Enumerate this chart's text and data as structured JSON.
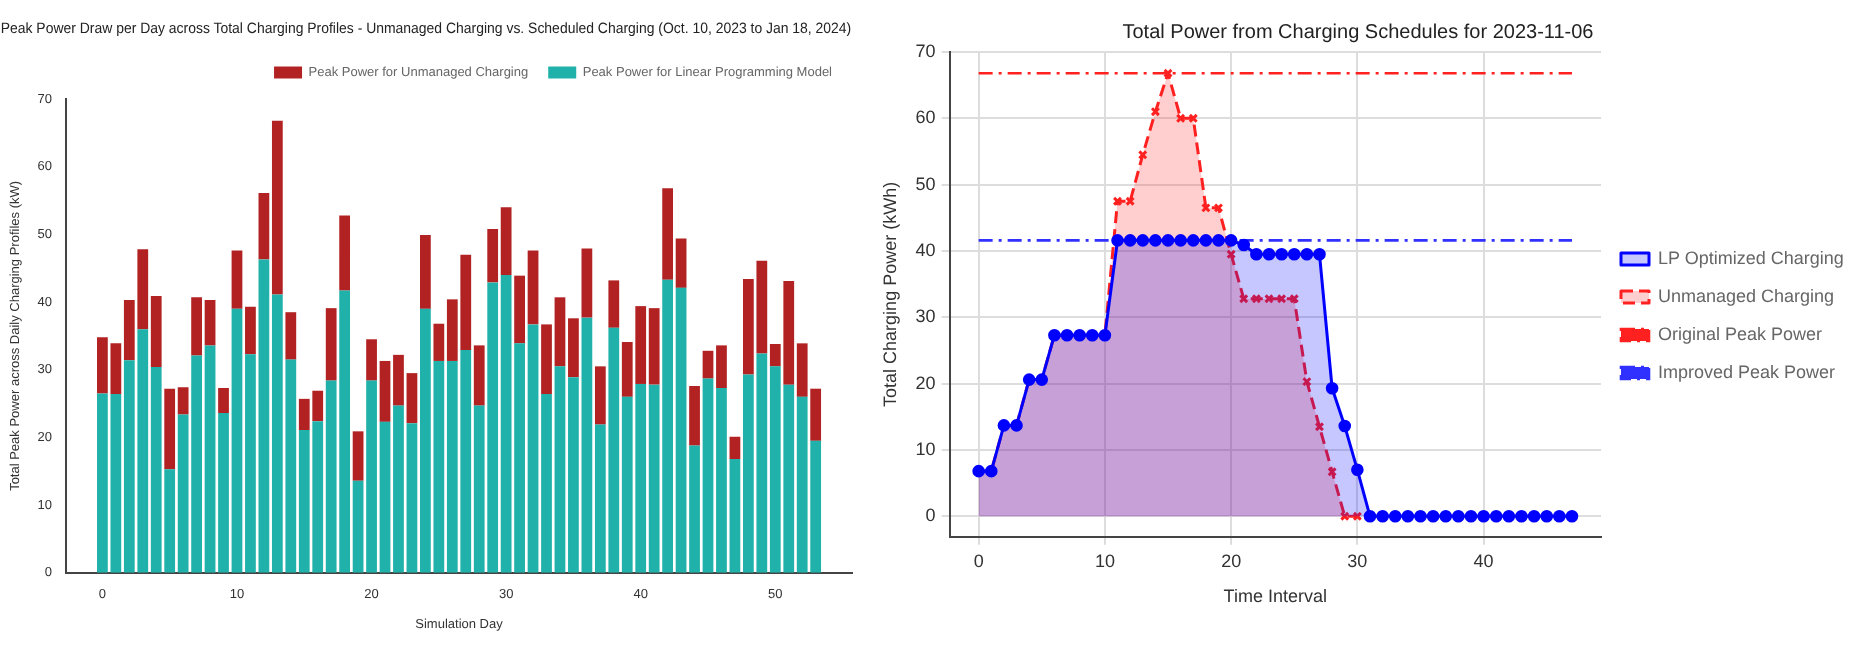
{
  "chart_data": [
    {
      "type": "bar",
      "title": "Peak Power Draw per Day across Total Charging Profiles - Unmanaged Charging vs. Scheduled Charging (Oct. 10, 2023 to Jan 18, 2024)",
      "xlabel": "Simulation Day",
      "ylabel": "Total Peak Power across Daily Charging Profiles (kW)",
      "stacked": true,
      "legend": "top right",
      "x": [
        0,
        1,
        2,
        3,
        4,
        5,
        6,
        7,
        8,
        9,
        10,
        11,
        12,
        13,
        14,
        15,
        16,
        17,
        18,
        19,
        20,
        21,
        22,
        23,
        24,
        25,
        26,
        27,
        28,
        29,
        30,
        31,
        32,
        33,
        34,
        35,
        36,
        37,
        38,
        39,
        40,
        41,
        42,
        43,
        44,
        45,
        46,
        47,
        48,
        49,
        50,
        51,
        52,
        53
      ],
      "xlim": [
        -2.7,
        55.7
      ],
      "xticks": [
        0,
        10,
        20,
        30,
        40,
        50
      ],
      "ylim": [
        0,
        70
      ],
      "yticks": [
        0,
        10,
        20,
        30,
        40,
        50,
        60,
        70
      ],
      "series": [
        {
          "name": "Peak Power for Linear Programming Model",
          "color": "#20b2aa",
          "values": [
            26.5,
            26.4,
            31.4,
            36.0,
            30.4,
            15.3,
            23.4,
            32.1,
            33.6,
            23.6,
            39.0,
            32.3,
            46.3,
            41.1,
            31.5,
            21.1,
            22.4,
            28.4,
            41.7,
            13.6,
            28.4,
            22.3,
            24.7,
            22.1,
            39.0,
            31.3,
            31.3,
            32.9,
            24.7,
            42.9,
            44.0,
            33.9,
            36.7,
            26.4,
            30.5,
            28.9,
            37.7,
            21.9,
            36.2,
            26.0,
            27.9,
            27.8,
            43.3,
            42.1,
            18.8,
            28.7,
            27.3,
            16.8,
            29.3,
            32.4,
            30.5,
            27.8,
            26.0,
            19.5
          ]
        },
        {
          "name": "Peak Power for Unmanaged Charging",
          "color": "#b22222",
          "values": [
            8.3,
            7.5,
            8.9,
            11.8,
            10.5,
            11.9,
            4.0,
            8.6,
            6.7,
            3.7,
            8.6,
            7.0,
            9.8,
            25.7,
            7.0,
            4.6,
            4.5,
            10.7,
            11.1,
            7.3,
            6.1,
            9.0,
            7.5,
            7.4,
            10.9,
            5.5,
            9.1,
            14.1,
            8.9,
            7.9,
            10.0,
            10.0,
            10.9,
            10.3,
            10.2,
            8.7,
            10.2,
            8.6,
            7.0,
            8.1,
            11.5,
            11.3,
            13.5,
            7.3,
            8.8,
            4.1,
            6.3,
            3.3,
            14.1,
            13.7,
            3.3,
            15.3,
            7.9,
            7.7
          ]
        }
      ]
    },
    {
      "type": "area",
      "title": "Total Power from Charging Schedules for 2023-11-06",
      "xlabel": "Time Interval",
      "ylabel": "Total Charging Power (kWh)",
      "grid": true,
      "legend": "right",
      "xlim": [
        -2.3,
        49.3
      ],
      "xticks": [
        0,
        10,
        20,
        30,
        40
      ],
      "ylim": [
        -3.1,
        70
      ],
      "yticks": [
        0,
        10,
        20,
        30,
        40,
        50,
        60,
        70
      ],
      "series": [
        {
          "name": "Unmanaged Charging",
          "color": "#ff2020",
          "marker": "cross",
          "line_style": "dashed",
          "x": [
            0,
            1,
            2,
            3,
            4,
            5,
            6,
            7,
            8,
            9,
            10,
            11,
            12,
            13,
            14,
            15,
            16,
            17,
            18,
            19,
            20,
            21,
            22,
            23,
            24,
            25,
            26,
            27,
            28,
            29,
            30
          ],
          "values": [
            6.8,
            6.8,
            13.7,
            13.7,
            20.6,
            20.6,
            27.3,
            27.3,
            27.3,
            27.3,
            27.3,
            47.5,
            47.5,
            54.5,
            61,
            66.8,
            60,
            60,
            46.5,
            46.5,
            39.5,
            32.8,
            32.8,
            32.8,
            32.8,
            32.8,
            20.3,
            13.5,
            6.7,
            0,
            0
          ]
        },
        {
          "name": "LP Optimized Charging",
          "color": "#0000ff",
          "marker": "circle",
          "line_style": "solid",
          "x": [
            0,
            1,
            2,
            3,
            4,
            5,
            6,
            7,
            8,
            9,
            10,
            11,
            12,
            13,
            14,
            15,
            16,
            17,
            18,
            19,
            20,
            21,
            22,
            23,
            24,
            25,
            26,
            27,
            28,
            29,
            30,
            31,
            32,
            33,
            34,
            35,
            36,
            37,
            38,
            39,
            40,
            41,
            42,
            43,
            44,
            45,
            46,
            47
          ],
          "values": [
            6.8,
            6.8,
            13.7,
            13.7,
            20.6,
            20.6,
            27.3,
            27.3,
            27.3,
            27.3,
            27.3,
            41.6,
            41.6,
            41.6,
            41.6,
            41.6,
            41.6,
            41.6,
            41.6,
            41.6,
            41.6,
            40.9,
            39.5,
            39.5,
            39.5,
            39.5,
            39.5,
            39.5,
            19.3,
            13.6,
            7.0,
            0,
            0,
            0,
            0,
            0,
            0,
            0,
            0,
            0,
            0,
            0,
            0,
            0,
            0,
            0,
            0,
            0
          ]
        }
      ],
      "ref_lines": [
        {
          "axis": "y",
          "value": 66.8,
          "label": "Original Peak Power",
          "color": "#ff2020",
          "line_style": "dashed"
        },
        {
          "axis": "y",
          "value": 41.6,
          "label": "Improved Peak Power",
          "color": "#3030ff",
          "line_style": "dashed"
        }
      ]
    }
  ]
}
